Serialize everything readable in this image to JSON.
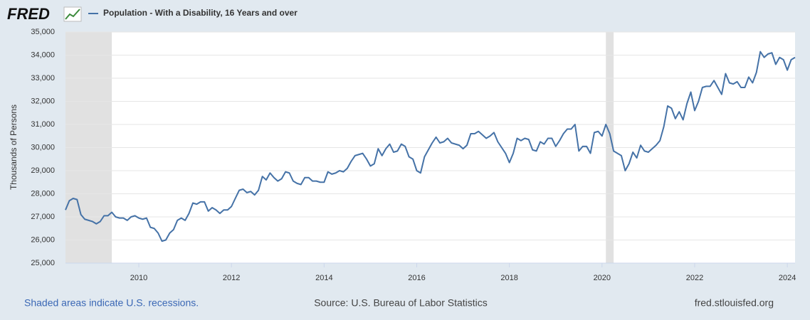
{
  "chart_data": {
    "type": "line",
    "logo": "FRED",
    "ylabel": "Thousands of Persons",
    "note": "Shaded areas indicate U.S. recessions.",
    "source": "Source: U.S. Bureau of Labor Statistics",
    "site": "fred.stlouisfed.org",
    "xlim": [
      2008.417,
      2024.167
    ],
    "xticks": [
      2010,
      2012,
      2014,
      2016,
      2018,
      2020,
      2022,
      2024
    ],
    "ylim": [
      25000,
      35000
    ],
    "yticks": [
      {
        "value": 25000,
        "label": "25,000"
      },
      {
        "value": 26000,
        "label": "26,000"
      },
      {
        "value": 27000,
        "label": "27,000"
      },
      {
        "value": 28000,
        "label": "28,000"
      },
      {
        "value": 29000,
        "label": "29,000"
      },
      {
        "value": 30000,
        "label": "30,000"
      },
      {
        "value": 31000,
        "label": "31,000"
      },
      {
        "value": 32000,
        "label": "32,000"
      },
      {
        "value": 33000,
        "label": "33,000"
      },
      {
        "value": 34000,
        "label": "34,000"
      },
      {
        "value": 35000,
        "label": "35,000"
      }
    ],
    "grid": true,
    "recessions": [
      [
        2008.417,
        2009.417
      ],
      [
        2020.083,
        2020.25
      ]
    ],
    "x": [
      2008.417,
      2008.5,
      2008.583,
      2008.667,
      2008.75,
      2008.833,
      2008.917,
      2009,
      2009.083,
      2009.167,
      2009.25,
      2009.333,
      2009.417,
      2009.5,
      2009.583,
      2009.667,
      2009.75,
      2009.833,
      2009.917,
      2010,
      2010.083,
      2010.167,
      2010.25,
      2010.333,
      2010.417,
      2010.5,
      2010.583,
      2010.667,
      2010.75,
      2010.833,
      2010.917,
      2011,
      2011.083,
      2011.167,
      2011.25,
      2011.333,
      2011.417,
      2011.5,
      2011.583,
      2011.667,
      2011.75,
      2011.833,
      2011.917,
      2012,
      2012.083,
      2012.167,
      2012.25,
      2012.333,
      2012.417,
      2012.5,
      2012.583,
      2012.667,
      2012.75,
      2012.833,
      2012.917,
      2013,
      2013.083,
      2013.167,
      2013.25,
      2013.333,
      2013.417,
      2013.5,
      2013.583,
      2013.667,
      2013.75,
      2013.833,
      2013.917,
      2014,
      2014.083,
      2014.167,
      2014.25,
      2014.333,
      2014.417,
      2014.5,
      2014.583,
      2014.667,
      2014.75,
      2014.833,
      2014.917,
      2015,
      2015.083,
      2015.167,
      2015.25,
      2015.333,
      2015.417,
      2015.5,
      2015.583,
      2015.667,
      2015.75,
      2015.833,
      2015.917,
      2016,
      2016.083,
      2016.167,
      2016.25,
      2016.333,
      2016.417,
      2016.5,
      2016.583,
      2016.667,
      2016.75,
      2016.833,
      2016.917,
      2017,
      2017.083,
      2017.167,
      2017.25,
      2017.333,
      2017.417,
      2017.5,
      2017.583,
      2017.667,
      2017.75,
      2017.833,
      2017.917,
      2018,
      2018.083,
      2018.167,
      2018.25,
      2018.333,
      2018.417,
      2018.5,
      2018.583,
      2018.667,
      2018.75,
      2018.833,
      2018.917,
      2019,
      2019.083,
      2019.167,
      2019.25,
      2019.333,
      2019.417,
      2019.5,
      2019.583,
      2019.667,
      2019.75,
      2019.833,
      2019.917,
      2020,
      2020.083,
      2020.167,
      2020.25,
      2020.333,
      2020.417,
      2020.5,
      2020.583,
      2020.667,
      2020.75,
      2020.833,
      2020.917,
      2021,
      2021.083,
      2021.167,
      2021.25,
      2021.333,
      2021.417,
      2021.5,
      2021.583,
      2021.667,
      2021.75,
      2021.833,
      2021.917,
      2022,
      2022.083,
      2022.167,
      2022.25,
      2022.333,
      2022.417,
      2022.5,
      2022.583,
      2022.667,
      2022.75,
      2022.833,
      2022.917,
      2023,
      2023.083,
      2023.167,
      2023.25,
      2023.333,
      2023.417,
      2023.5,
      2023.583,
      2023.667,
      2023.75,
      2023.833,
      2023.917,
      2024,
      2024.083,
      2024.167
    ],
    "series": [
      {
        "name": "Population - With a Disability, 16 Years and over",
        "color": "#4572a7",
        "values": [
          27300,
          27700,
          27800,
          27750,
          27100,
          26900,
          26850,
          26800,
          26700,
          26800,
          27050,
          27050,
          27200,
          27000,
          26950,
          26950,
          26850,
          27000,
          27050,
          26950,
          26900,
          26950,
          26550,
          26500,
          26300,
          25950,
          26000,
          26300,
          26450,
          26850,
          26950,
          26850,
          27150,
          27600,
          27550,
          27650,
          27650,
          27250,
          27400,
          27300,
          27150,
          27300,
          27300,
          27450,
          27800,
          28150,
          28200,
          28050,
          28100,
          27950,
          28150,
          28750,
          28600,
          28900,
          28700,
          28550,
          28650,
          28950,
          28900,
          28550,
          28450,
          28400,
          28700,
          28700,
          28550,
          28550,
          28500,
          28500,
          28950,
          28850,
          28900,
          29000,
          28950,
          29100,
          29400,
          29650,
          29700,
          29750,
          29500,
          29200,
          29300,
          29950,
          29650,
          29950,
          30150,
          29800,
          29850,
          30150,
          30050,
          29600,
          29500,
          29000,
          28900,
          29600,
          29900,
          30200,
          30450,
          30200,
          30250,
          30400,
          30200,
          30150,
          30100,
          29950,
          30100,
          30600,
          30600,
          30700,
          30550,
          30400,
          30500,
          30650,
          30250,
          30000,
          29750,
          29350,
          29750,
          30400,
          30300,
          30400,
          30350,
          29900,
          29850,
          30250,
          30150,
          30400,
          30400,
          30050,
          30300,
          30600,
          30800,
          30800,
          31000,
          29850,
          30050,
          30050,
          29750,
          30650,
          30700,
          30500,
          31000,
          30600,
          29850,
          29750,
          29650,
          29000,
          29300,
          29800,
          29550,
          30100,
          29850,
          29800,
          29950,
          30100,
          30300,
          30900,
          31800,
          31700,
          31250,
          31550,
          31200,
          31900,
          32400,
          31600,
          32000,
          32600,
          32650,
          32650,
          32900,
          32600,
          32300,
          33200,
          32800,
          32750,
          32850,
          32600,
          32600,
          33050,
          32800,
          33250,
          34150,
          33900,
          34050,
          34100,
          33600,
          33900,
          33800,
          33350,
          33800,
          33900
        ]
      }
    ]
  }
}
